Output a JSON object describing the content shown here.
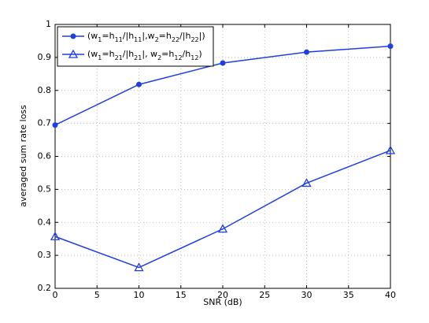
{
  "chart_data": {
    "type": "line",
    "xlabel": "SNR (dB)",
    "ylabel": "averaged sum rate loss",
    "x": [
      0,
      10,
      20,
      30,
      40
    ],
    "series": [
      {
        "name": "(w1=h11/|h11|,w2=h22/|h22|)",
        "color": "#1f3fe6",
        "marker": "circle",
        "values": [
          0.695,
          0.818,
          0.883,
          0.916,
          0.934
        ]
      },
      {
        "name": "(w1=h21/|h21|, w2=h12/h12)",
        "color": "#1f3fe6",
        "marker": "triangle",
        "values": [
          0.357,
          0.263,
          0.38,
          0.519,
          0.618
        ]
      }
    ],
    "xlim": [
      0,
      40
    ],
    "xticks": [
      0,
      5,
      10,
      15,
      20,
      25,
      30,
      35,
      40
    ],
    "ylim": [
      0.2,
      1
    ],
    "yticks": [
      0.2,
      0.3,
      0.4,
      0.5,
      0.6,
      0.7,
      0.8,
      0.9,
      1
    ],
    "grid": true,
    "legend": "upper left"
  }
}
